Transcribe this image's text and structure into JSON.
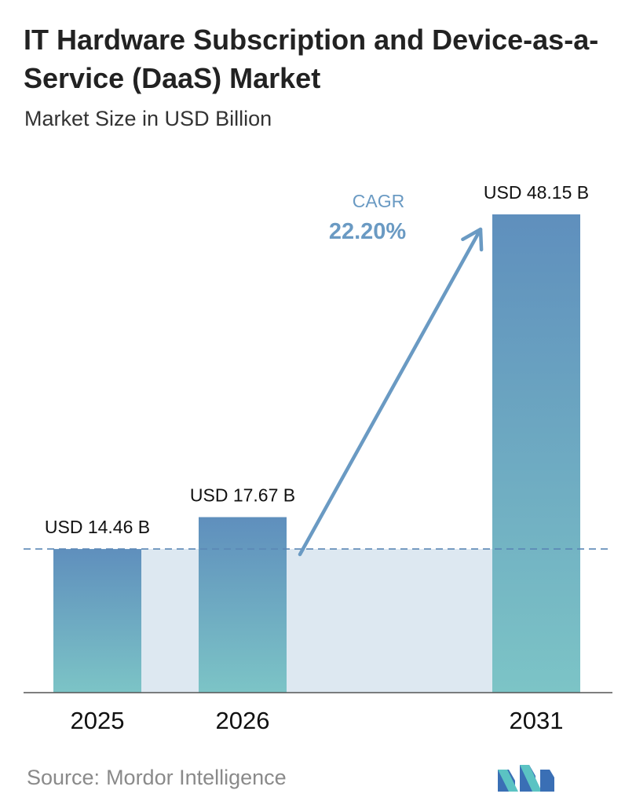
{
  "header": {
    "title": "IT Hardware Subscription and Device-as-a-Service (DaaS) Market",
    "subtitle": "Market Size in USD Billion"
  },
  "chart_data": {
    "type": "bar",
    "categories": [
      "2025",
      "2026",
      "2031"
    ],
    "values": [
      14.46,
      17.67,
      48.15
    ],
    "data_labels": [
      "USD 14.46 B",
      "USD 17.67 B",
      "USD 48.15 B"
    ],
    "title": "IT Hardware Subscription and Device-as-a-Service (DaaS) Market",
    "subtitle": "Market Size in USD Billion",
    "ylim": [
      0,
      48.15
    ],
    "grid": false,
    "reference_line_value": 14.46,
    "annotation": {
      "label": "CAGR",
      "value": "22.20%"
    },
    "colors": {
      "bar_top": "#5f8fbd",
      "bar_bottom": "#7cc4c6",
      "band": "#dde8f1",
      "arrow": "#6a9ac3",
      "annotation_text": "#6a9ac3",
      "dashed_line": "#5b87b5",
      "axis": "#555555"
    }
  },
  "footer": {
    "source_label": "Source:",
    "source_name": "Mordor Intelligence",
    "logo_icon": "mordor-intelligence-logo-icon"
  }
}
